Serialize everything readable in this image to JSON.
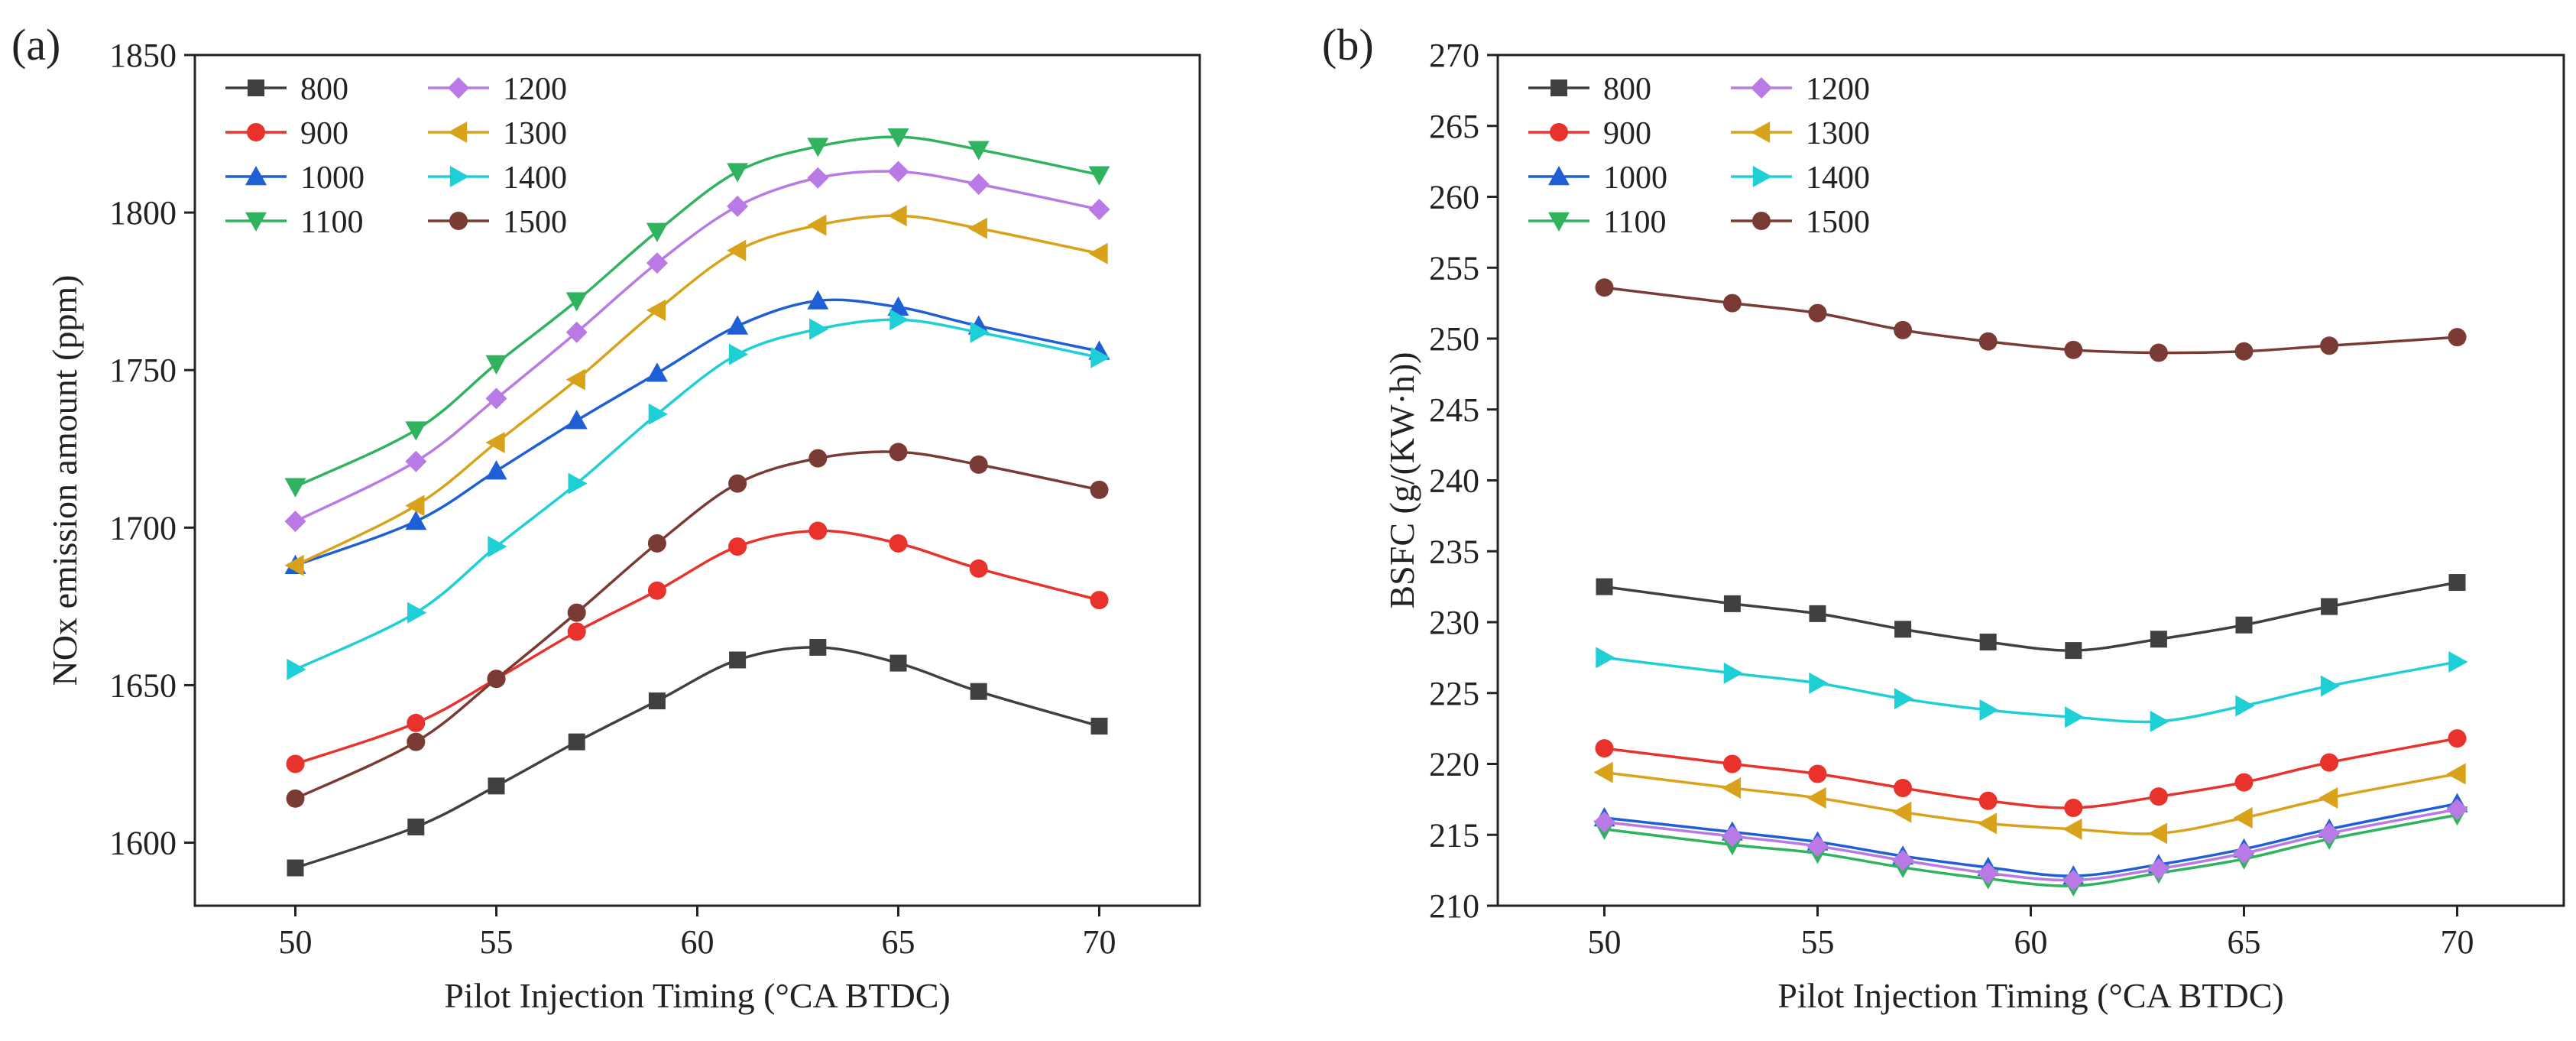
{
  "chart_data": [
    {
      "type": "line",
      "panel_label": "(a)",
      "title": "",
      "xlabel": "Pilot Injection Timing (°CA BTDC)",
      "ylabel": "NOx emission amount (ppm)",
      "xlim": [
        47.5,
        72.5
      ],
      "ylim": [
        1580,
        1850
      ],
      "xticks": [
        50,
        55,
        60,
        65,
        70
      ],
      "yticks": [
        1600,
        1650,
        1700,
        1750,
        1800,
        1850
      ],
      "legend_position": "top-left",
      "x": [
        50,
        53,
        55,
        57,
        59,
        61,
        63,
        65,
        67,
        70
      ],
      "series": [
        {
          "name": "800",
          "color": "#404040",
          "marker": "square",
          "values": [
            1592,
            1605,
            1618,
            1632,
            1645,
            1658,
            1662,
            1657,
            1648,
            1637
          ]
        },
        {
          "name": "900",
          "color": "#e8322b",
          "marker": "circle",
          "values": [
            1625,
            1638,
            1652,
            1667,
            1680,
            1694,
            1699,
            1695,
            1687,
            1677
          ]
        },
        {
          "name": "1000",
          "color": "#1f5fd6",
          "marker": "triangle-up",
          "values": [
            1688,
            1702,
            1718,
            1734,
            1749,
            1764,
            1772,
            1770,
            1764,
            1756
          ]
        },
        {
          "name": "1100",
          "color": "#2fb35e",
          "marker": "triangle-down",
          "values": [
            1713,
            1731,
            1752,
            1772,
            1794,
            1813,
            1821,
            1824,
            1820,
            1812
          ]
        },
        {
          "name": "1200",
          "color": "#b97ae6",
          "marker": "diamond",
          "values": [
            1702,
            1721,
            1741,
            1762,
            1784,
            1802,
            1811,
            1813,
            1809,
            1801
          ]
        },
        {
          "name": "1300",
          "color": "#d9a21b",
          "marker": "triangle-left",
          "values": [
            1688,
            1707,
            1727,
            1747,
            1769,
            1788,
            1796,
            1799,
            1795,
            1787
          ]
        },
        {
          "name": "1400",
          "color": "#1fcfd6",
          "marker": "triangle-right",
          "values": [
            1655,
            1673,
            1694,
            1714,
            1736,
            1755,
            1763,
            1766,
            1762,
            1754
          ]
        },
        {
          "name": "1500",
          "color": "#7a3b35",
          "marker": "circle",
          "values": [
            1614,
            1632,
            1652,
            1673,
            1695,
            1714,
            1722,
            1724,
            1720,
            1712
          ]
        }
      ]
    },
    {
      "type": "line",
      "panel_label": "(b)",
      "title": "",
      "xlabel": "Pilot Injection Timing (°CA BTDC)",
      "ylabel": "BSFC (g/(KW·h))",
      "xlim": [
        47.5,
        72.5
      ],
      "ylim": [
        210,
        270
      ],
      "xticks": [
        50,
        55,
        60,
        65,
        70
      ],
      "yticks": [
        210,
        215,
        220,
        225,
        230,
        235,
        240,
        245,
        250,
        255,
        260,
        265,
        270
      ],
      "legend_position": "top-left",
      "x": [
        50,
        53,
        55,
        57,
        59,
        61,
        63,
        65,
        67,
        70
      ],
      "series": [
        {
          "name": "800",
          "color": "#404040",
          "marker": "square",
          "values": [
            232.5,
            231.3,
            230.6,
            229.5,
            228.6,
            228.0,
            228.8,
            229.8,
            231.1,
            232.8
          ]
        },
        {
          "name": "900",
          "color": "#e8322b",
          "marker": "circle",
          "values": [
            221.1,
            220.0,
            219.3,
            218.3,
            217.4,
            216.9,
            217.7,
            218.7,
            220.1,
            221.8
          ]
        },
        {
          "name": "1000",
          "color": "#1f5fd6",
          "marker": "triangle-up",
          "values": [
            216.2,
            215.2,
            214.5,
            213.5,
            212.7,
            212.1,
            212.9,
            214.0,
            215.4,
            217.2
          ]
        },
        {
          "name": "1100",
          "color": "#2fb35e",
          "marker": "triangle-down",
          "values": [
            215.4,
            214.3,
            213.7,
            212.7,
            211.9,
            211.4,
            212.3,
            213.3,
            214.7,
            216.4
          ]
        },
        {
          "name": "1200",
          "color": "#b97ae6",
          "marker": "diamond",
          "values": [
            215.9,
            214.9,
            214.2,
            213.2,
            212.3,
            211.8,
            212.6,
            213.7,
            215.1,
            216.8
          ]
        },
        {
          "name": "1300",
          "color": "#d9a21b",
          "marker": "triangle-left",
          "values": [
            219.4,
            218.3,
            217.6,
            216.6,
            215.8,
            215.4,
            215.1,
            216.2,
            217.6,
            219.3
          ]
        },
        {
          "name": "1400",
          "color": "#1fcfd6",
          "marker": "triangle-right",
          "values": [
            227.5,
            226.4,
            225.7,
            224.6,
            223.8,
            223.3,
            223.0,
            224.1,
            225.5,
            227.2
          ]
        },
        {
          "name": "1500",
          "color": "#7a3b35",
          "marker": "circle",
          "values": [
            253.6,
            252.5,
            251.8,
            250.6,
            249.8,
            249.2,
            249.0,
            249.1,
            249.5,
            250.1
          ]
        }
      ]
    }
  ]
}
